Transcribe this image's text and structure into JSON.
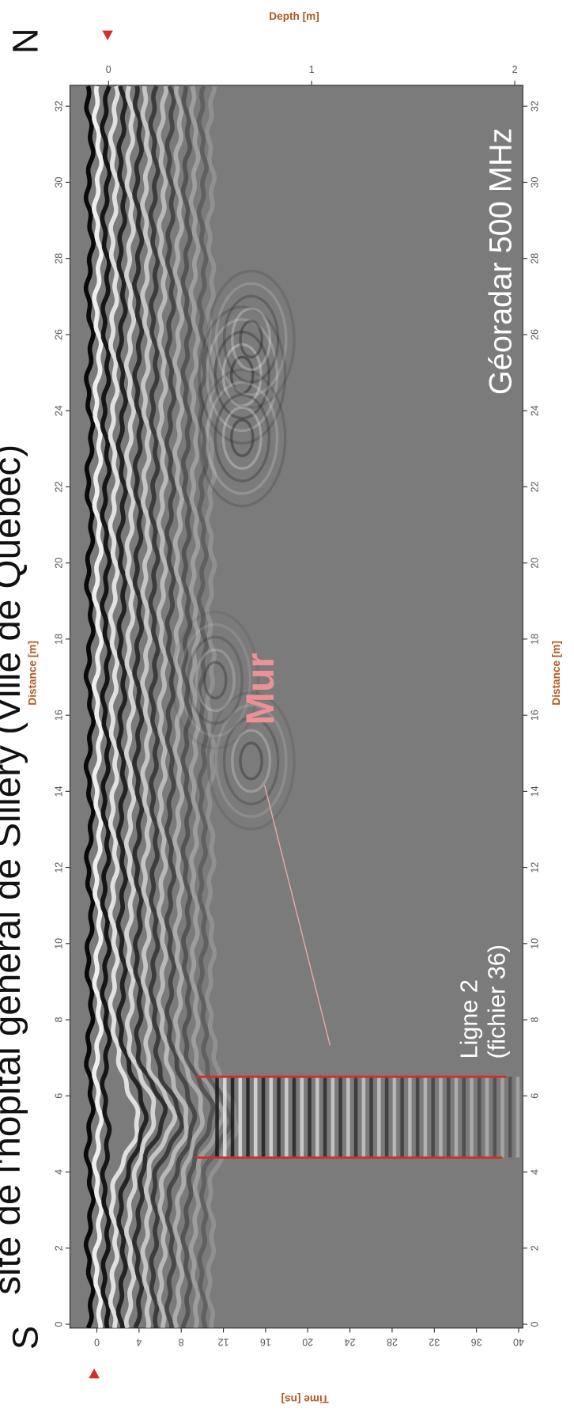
{
  "chart_data": {
    "type": "radargram",
    "title": "site de l'hôpital général de Sillery (Ville de Québec)",
    "direction_labels": [
      "S",
      "N"
    ],
    "x_label": "Distance [m]",
    "y_label": "Time [ns]",
    "y2_label": "Depth [m]",
    "xlim": [
      -0.1,
      32.55
    ],
    "xticks": [
      0,
      2,
      4,
      6,
      8,
      10,
      12,
      14,
      16,
      18,
      20,
      22,
      24,
      26,
      28,
      30,
      32
    ],
    "ylim": [
      -2.55,
      40.4
    ],
    "yticks": [
      0,
      4,
      8,
      12,
      16,
      20,
      24,
      28,
      32,
      36,
      40
    ],
    "y_inverted": true,
    "y2lim": [
      -0.19,
      2.04
    ],
    "y2ticks": [
      0,
      1,
      2
    ],
    "annotations": [
      "Mur",
      "Ligne 2",
      "(fichier 36)",
      "Géoradar 500 MHz"
    ]
  }
}
